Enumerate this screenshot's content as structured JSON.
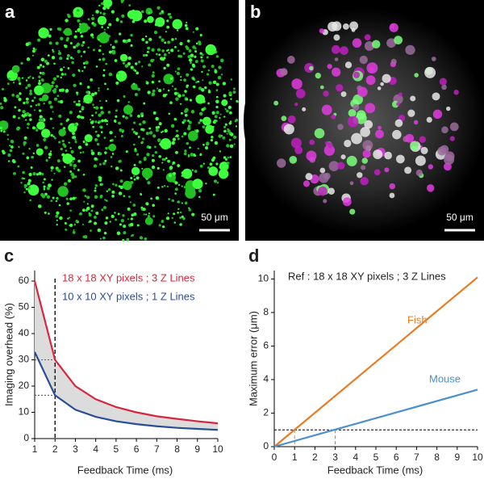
{
  "images": [
    {
      "panel_label": "a",
      "scale_bar": "50 μm"
    },
    {
      "panel_label": "b",
      "scale_bar": "50 μm"
    }
  ],
  "chart_data": [
    {
      "type": "line",
      "panel_label": "c",
      "x_label": "Feedback Time (ms)",
      "y_label": "Imaging overhead (%)",
      "x": [
        1,
        2,
        3,
        4,
        5,
        6,
        7,
        8,
        9,
        10
      ],
      "series": [
        {
          "name": "18 x 18 XY pixels ; 3 Z Lines",
          "color": "#d7263d",
          "values": [
            60,
            30,
            20,
            15,
            12,
            10,
            8.5,
            7.5,
            6.6,
            5.8
          ]
        },
        {
          "name": "10 x 10 XY pixels ; 1 Z Lines",
          "color": "#2a4d9b",
          "values": [
            33,
            16.5,
            11,
            8.3,
            6.6,
            5.5,
            4.7,
            4.1,
            3.7,
            3.3
          ]
        }
      ],
      "fill_between": true,
      "marker_x": 2,
      "xlim": [
        1,
        10
      ],
      "xticks": [
        1,
        2,
        3,
        4,
        5,
        6,
        7,
        8,
        9,
        10
      ],
      "ylim": [
        0,
        64
      ],
      "yticks": [
        0,
        10,
        20,
        30,
        40,
        50,
        60
      ]
    },
    {
      "type": "line",
      "panel_label": "d",
      "x_label": "Feedback Time (ms)",
      "y_label": "Maximum error (μm)",
      "annotation": "Ref : 18 x 18 XY pixels ; 3 Z Lines",
      "series": [
        {
          "name": "Fish",
          "color": "#ec7a23",
          "x": [
            0,
            10
          ],
          "values": [
            0,
            10.1
          ]
        },
        {
          "name": "Mouse",
          "color": "#4a90cf",
          "x": [
            0,
            10
          ],
          "values": [
            0,
            3.4
          ]
        }
      ],
      "threshold": 1,
      "crossings_x": [
        1,
        3
      ],
      "xlim": [
        0,
        10
      ],
      "xticks": [
        0,
        1,
        2,
        3,
        4,
        5,
        6,
        7,
        8,
        9,
        10
      ],
      "ylim": [
        0,
        10.5
      ],
      "yticks": [
        0,
        2,
        4,
        6,
        8,
        10
      ]
    }
  ]
}
